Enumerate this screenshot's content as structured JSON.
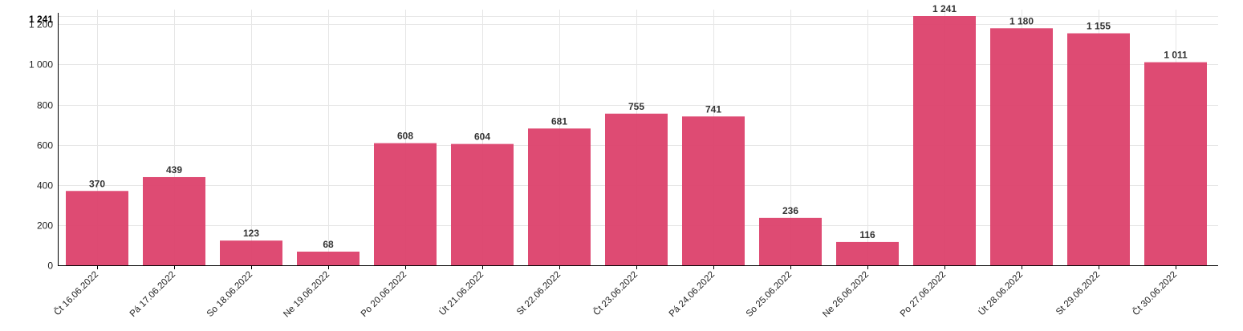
{
  "chart_data": {
    "type": "bar",
    "title": "",
    "xlabel": "",
    "ylabel": "",
    "categories": [
      "Čt 16.06.2022",
      "Pá 17.06.2022",
      "So 18.06.2022",
      "Ne 19.06.2022",
      "Po 20.06.2022",
      "Út 21.06.2022",
      "St 22.06.2022",
      "Čt 23.06.2022",
      "Pá 24.06.2022",
      "So 25.06.2022",
      "Ne 26.06.2022",
      "Po 27.06.2022",
      "Út 28.06.2022",
      "St 29.06.2022",
      "Čt 30.06.2022"
    ],
    "values": [
      370,
      439,
      123,
      68,
      608,
      604,
      681,
      755,
      741,
      236,
      116,
      1241,
      1180,
      1155,
      1011
    ],
    "value_labels": [
      "370",
      "439",
      "123",
      "68",
      "608",
      "604",
      "681",
      "755",
      "741",
      "236",
      "116",
      "1 241",
      "1 180",
      "1 155",
      "1 011"
    ],
    "ylim": [
      0,
      1241
    ],
    "yticks": [
      0,
      200,
      400,
      600,
      800,
      1000,
      1200
    ],
    "ytick_labels": [
      "0",
      "200",
      "400",
      "600",
      "800",
      "1 000",
      "1 200"
    ],
    "y_max_label": "1 241",
    "grid": true,
    "bar_color": "#dc3d68"
  }
}
